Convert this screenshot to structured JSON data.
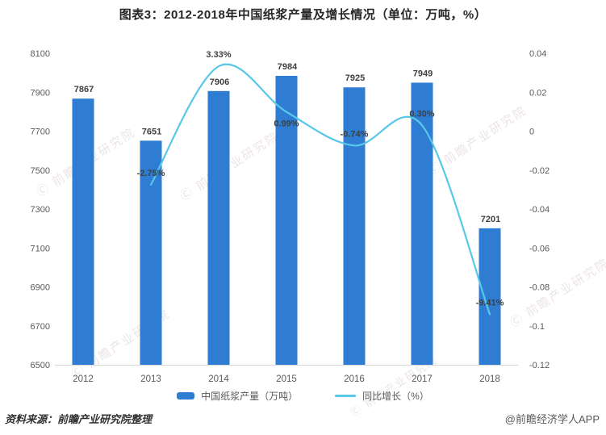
{
  "title": "图表3：2012-2018年中国纸浆产量及增长情况（单位：万吨，%）",
  "watermark": {
    "text": "Ⓒ 前瞻产业研究院"
  },
  "footer": {
    "source": "资料来源：前瞻产业研究院整理",
    "credit": "@前瞻经济学人APP"
  },
  "chart_data": {
    "type": "bar+line",
    "title": "图表3：2012-2018年中国纸浆产量及增长情况（单位：万吨，%）",
    "categories": [
      "2012",
      "2013",
      "2014",
      "2015",
      "2016",
      "2017",
      "2018"
    ],
    "series": [
      {
        "name": "中国纸浆产量（万吨）",
        "type": "bar",
        "axis": "left",
        "color": "#2e7dd3",
        "values": [
          7867,
          7651,
          7906,
          7984,
          7925,
          7949,
          7201
        ],
        "value_labels": [
          "7867",
          "7651",
          "7906",
          "7984",
          "7925",
          "7949",
          "7201"
        ]
      },
      {
        "name": "同比增长（%）",
        "type": "line",
        "axis": "right",
        "color": "#58c7e8",
        "values": [
          null,
          -0.0275,
          0.0333,
          0.0099,
          -0.0074,
          0.003,
          -0.0941
        ],
        "value_labels": [
          null,
          "-2.75%",
          "3.33%",
          "0.99%",
          "-0.74%",
          "0.30%",
          "-9.41%"
        ],
        "label_pos": [
          null,
          "above",
          "above",
          "below",
          "above",
          "above",
          "above"
        ]
      }
    ],
    "left_axis": {
      "min": 6500,
      "max": 8100,
      "step": 200,
      "ticks": [
        6500,
        6700,
        6900,
        7100,
        7300,
        7500,
        7700,
        7900,
        8100
      ]
    },
    "right_axis": {
      "min": -0.12,
      "max": 0.04,
      "step": 0.02,
      "ticks": [
        "-0.12",
        "-0.1",
        "-0.08",
        "-0.06",
        "-0.04",
        "-0.02",
        "0",
        "0.02",
        "0.04"
      ]
    },
    "grid": false,
    "legend_position": "bottom"
  }
}
